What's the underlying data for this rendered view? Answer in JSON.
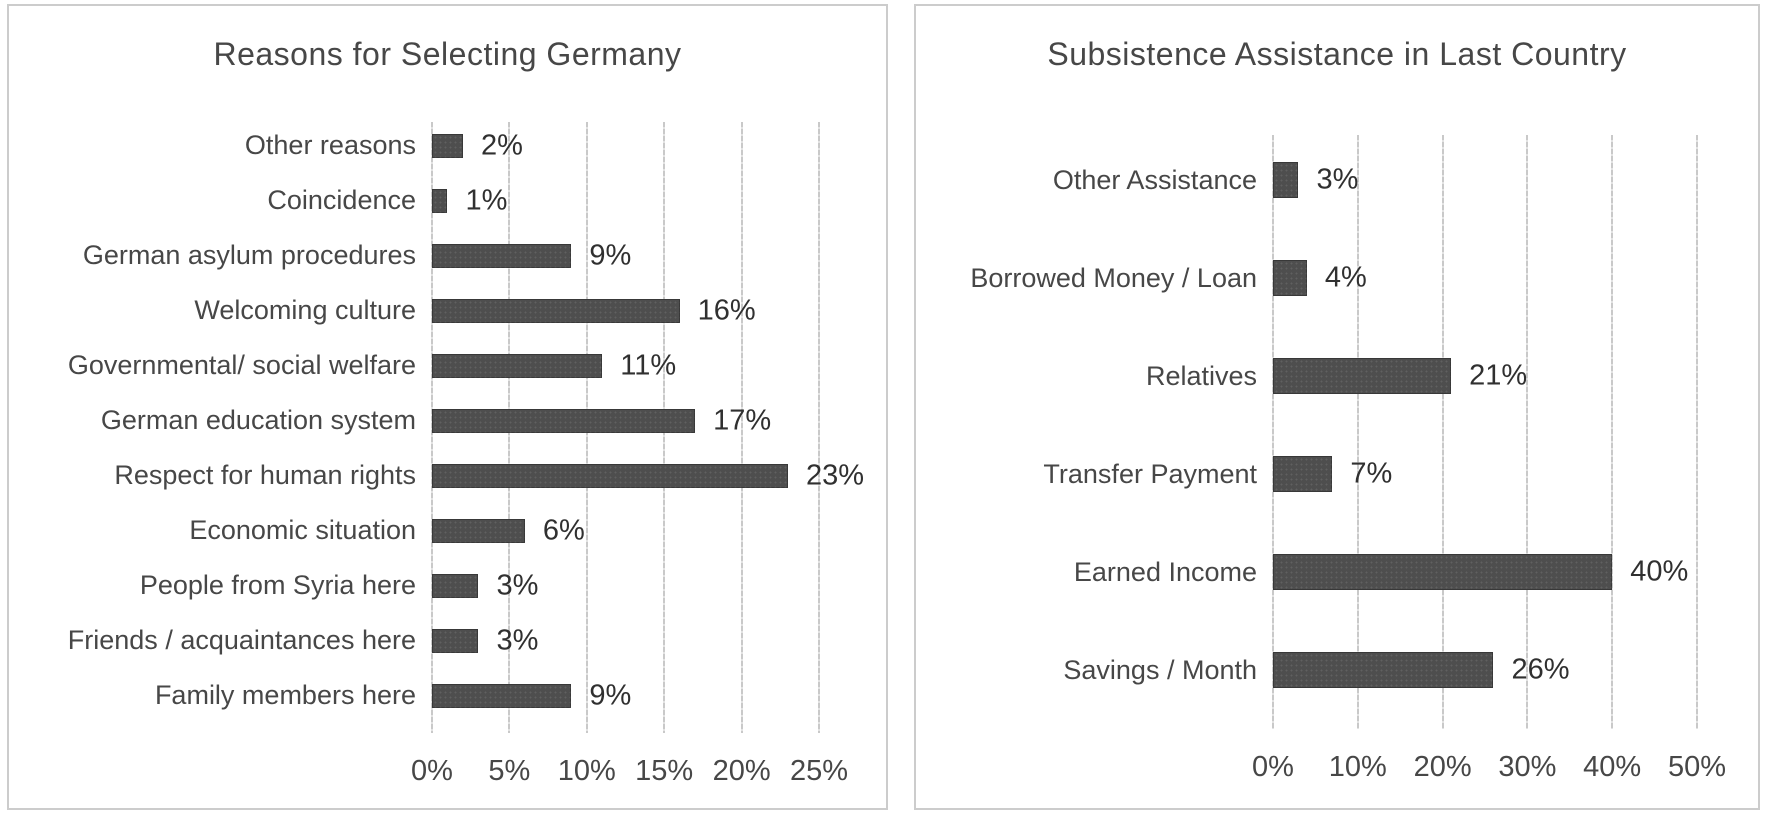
{
  "figure": {
    "description": "Two horizontal bar charts side by side",
    "bar_color": "#4e4e4e",
    "gridline_color": "#c9c9c9",
    "text_color": "#474747"
  },
  "chart_data": [
    {
      "type": "bar",
      "orientation": "horizontal",
      "title": "Reasons for Selecting Germany",
      "categories": [
        "Other reasons",
        "Coincidence",
        "German asylum procedures",
        "Welcoming culture",
        "Governmental/ social welfare",
        "German education system",
        "Respect for human rights",
        "Economic situation",
        "People from Syria here",
        "Friends / acquaintances here",
        "Family members here"
      ],
      "values": [
        2,
        1,
        9,
        16,
        11,
        17,
        23,
        6,
        3,
        3,
        9
      ],
      "data_labels": [
        "2%",
        "1%",
        "9%",
        "16%",
        "11%",
        "17%",
        "23%",
        "6%",
        "3%",
        "3%",
        "9%"
      ],
      "x_ticks": [
        "0%",
        "5%",
        "10%",
        "15%",
        "20%",
        "25%"
      ],
      "xlim": [
        0,
        25
      ],
      "xlabel": "",
      "ylabel": "",
      "grid": "vertical",
      "legend": "none",
      "bar_color": "#4e4e4e"
    },
    {
      "type": "bar",
      "orientation": "horizontal",
      "title": "Subsistence Assistance in Last Country",
      "categories": [
        "Other Assistance",
        "Borrowed Money / Loan",
        "Relatives",
        "Transfer Payment",
        "Earned Income",
        "Savings / Month"
      ],
      "values": [
        3,
        4,
        21,
        7,
        40,
        26
      ],
      "data_labels": [
        "3%",
        "4%",
        "21%",
        "7%",
        "40%",
        "26%"
      ],
      "x_ticks": [
        "0%",
        "10%",
        "20%",
        "30%",
        "40%",
        "50%"
      ],
      "xlim": [
        0,
        50
      ],
      "xlabel": "",
      "ylabel": "",
      "grid": "vertical",
      "legend": "none",
      "bar_color": "#4e4e4e"
    }
  ]
}
